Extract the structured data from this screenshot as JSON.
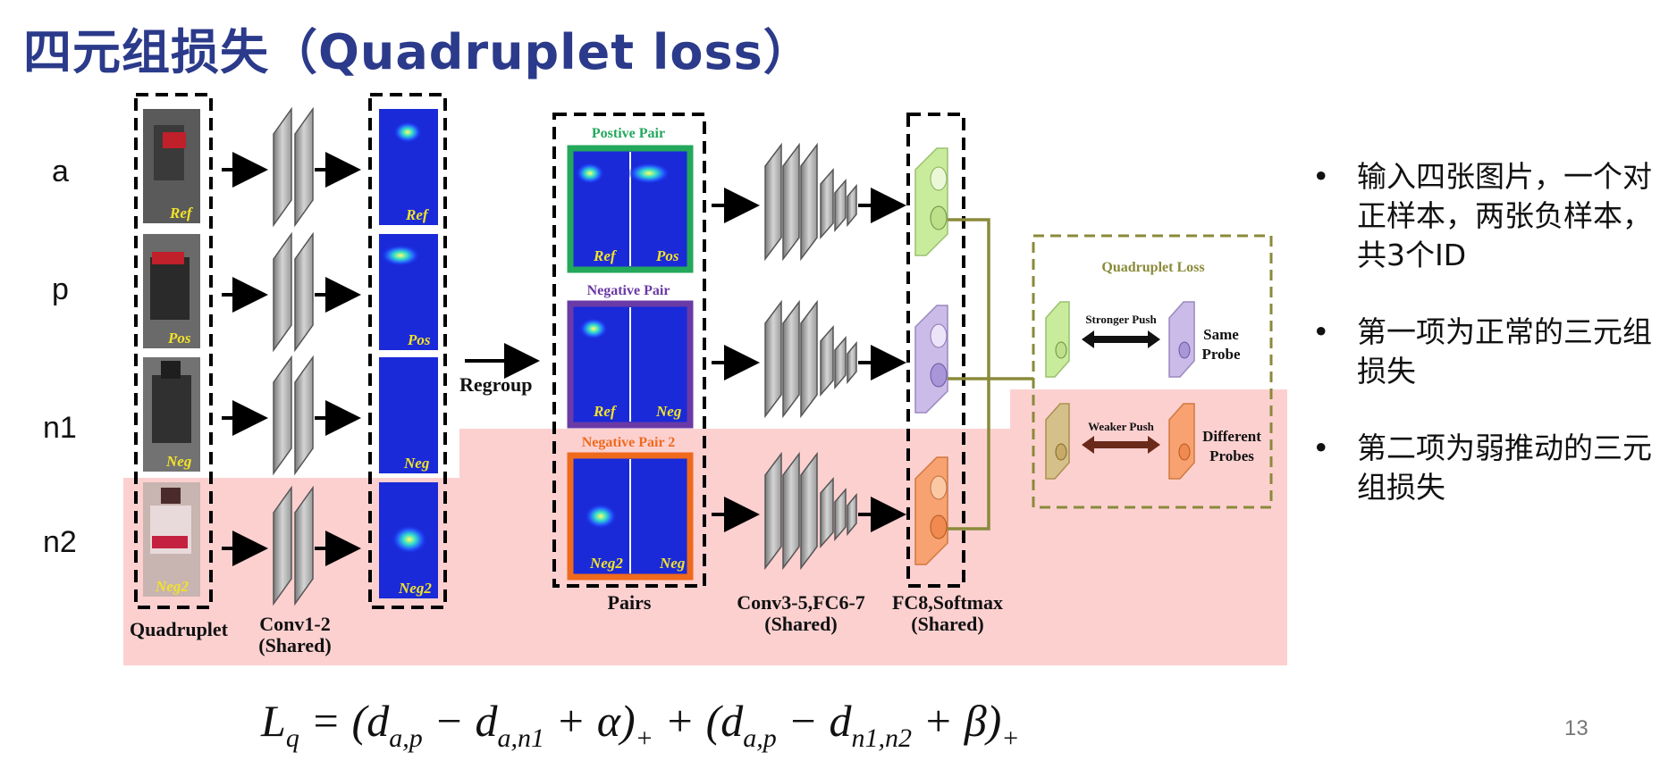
{
  "title": "四元组损失（Quadruplet loss）",
  "rows": [
    "a",
    "p",
    "n1",
    "n2"
  ],
  "input_tags": [
    "Ref",
    "Pos",
    "Neg",
    "Neg2"
  ],
  "map_tags": [
    "Ref",
    "Pos",
    "Neg",
    "Neg2"
  ],
  "labels": {
    "quadruplet": "Quadruplet",
    "conv12": "Conv1-2",
    "shared": "(Shared)",
    "regroup": "Regroup",
    "pairs": "Pairs",
    "conv35": "Conv3-5,FC6-7",
    "fc8": "FC8,Softmax"
  },
  "pairs": [
    {
      "title": "Postive Pair",
      "left": "Ref",
      "right": "Pos",
      "color": "#23a85c"
    },
    {
      "title": "Negative Pair",
      "left": "Ref",
      "right": "Neg",
      "color": "#6a3aa6"
    },
    {
      "title": "Negative Pair 2",
      "left": "Neg2",
      "right": "Neg",
      "color": "#ef6a1c"
    }
  ],
  "loss_box": {
    "title": "Quadruplet Loss",
    "stronger": "Stronger Push",
    "weaker": "Weaker Push",
    "same1": "Same",
    "same2": "Probe",
    "diff1": "Different",
    "diff2": "Probes"
  },
  "bullets": [
    "输入四张图片，一个对正样本，两张负样本，共3个ID",
    "第一项为正常的三元组损失",
    "第二项为弱推动的三元组损失"
  ],
  "bullet_symbol": "•",
  "formula": {
    "lhs": "L",
    "lhs_sub": "q",
    "eq": " = (",
    "t1": "d",
    "t1_sub": "a,p",
    "minus1": " − ",
    "t2": "d",
    "t2_sub": "a,n1",
    "plus_alpha": " + α)",
    "plus_sub1": "+",
    "mid": " + (",
    "t3": "d",
    "t3_sub": "a,p",
    "minus2": " − ",
    "t4": "d",
    "t4_sub": "n1,n2",
    "plus_beta": " + β)",
    "plus_sub2": "+"
  },
  "page_number": "13",
  "colors": {
    "title": "#2b3a8a",
    "highlight": "#fdd0d0",
    "green_cube": "#c8ec9c",
    "purple_cube": "#cbbbe8",
    "orange_cube": "#f7a270",
    "olive": "#8a8a3a"
  }
}
